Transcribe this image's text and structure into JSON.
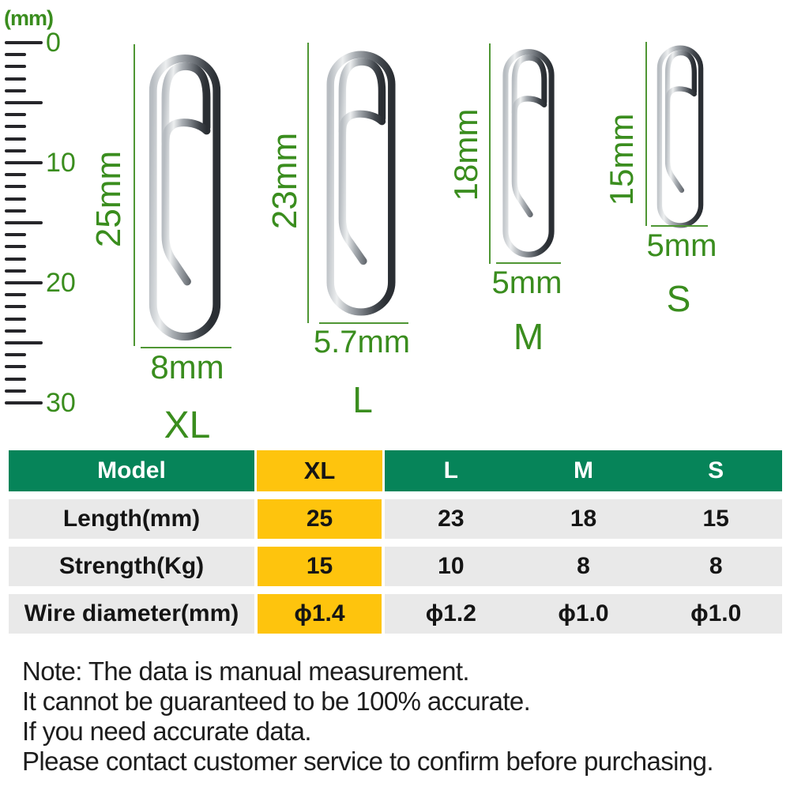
{
  "colors": {
    "header_green": "#068459",
    "highlight_yellow": "#fec40d",
    "row_gray": "#e9e9e9",
    "label_green": "#3a8d1e",
    "dim_line_green": "#4f9634",
    "tick_color": "#26262a"
  },
  "ruler": {
    "unit": "(mm)",
    "tick_count": 31,
    "major_every": 5,
    "labels": [
      "0",
      "10",
      "20",
      "30"
    ]
  },
  "clips": [
    {
      "id": "xl",
      "size_label": "XL",
      "height_label": "25mm",
      "width_label": "8mm"
    },
    {
      "id": "l",
      "size_label": "L",
      "height_label": "23mm",
      "width_label": "5.7mm"
    },
    {
      "id": "m",
      "size_label": "M",
      "height_label": "18mm",
      "width_label": "5mm"
    },
    {
      "id": "s",
      "size_label": "S",
      "height_label": "15mm",
      "width_label": "5mm"
    }
  ],
  "table": {
    "header": [
      "Model",
      "XL",
      "L",
      "M",
      "S"
    ],
    "highlight_column": "XL",
    "rows": [
      {
        "label": "Length(mm)",
        "values": [
          "25",
          "23",
          "18",
          "15"
        ]
      },
      {
        "label": "Strength(Kg)",
        "values": [
          "15",
          "10",
          "8",
          "8"
        ]
      },
      {
        "label": "Wire diameter(mm)",
        "values": [
          "ϕ1.4",
          "ϕ1.2",
          "ϕ1.0",
          "ϕ1.0"
        ]
      }
    ]
  },
  "note": {
    "lines": [
      "Note: The data is manual measurement.",
      "It cannot be guaranteed to be 100% accurate.",
      "If you need accurate data.",
      "Please contact customer service to confirm before purchasing."
    ]
  }
}
